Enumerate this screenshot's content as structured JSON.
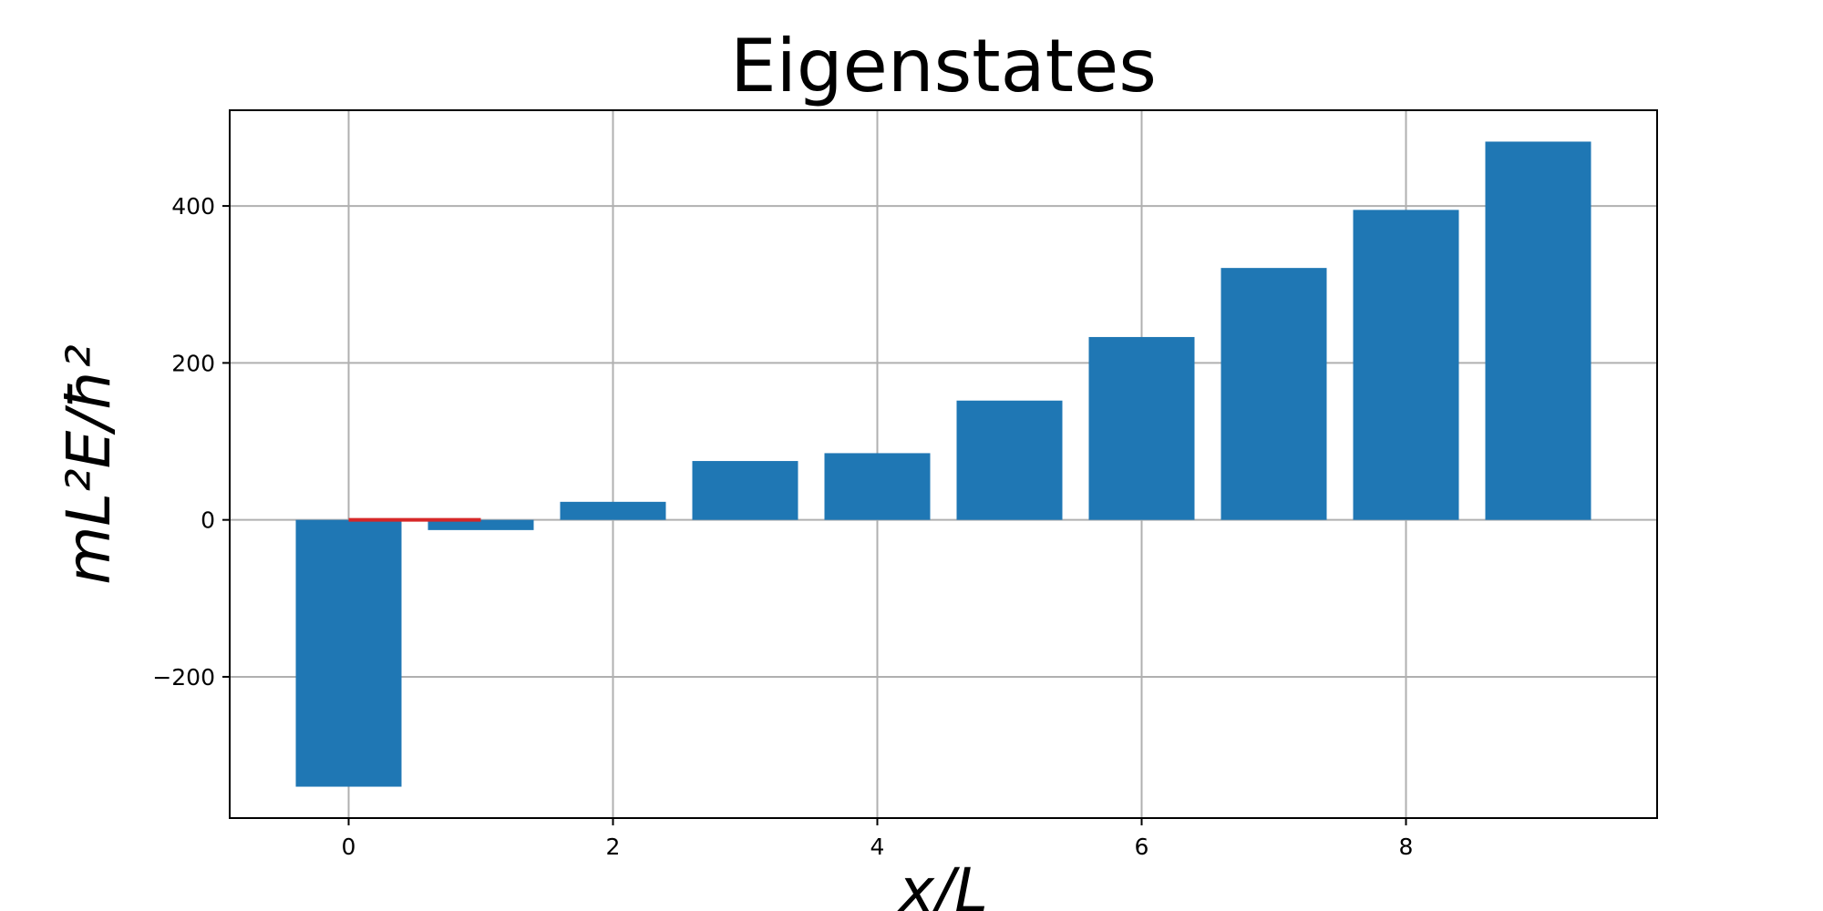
{
  "chart_data": {
    "type": "bar",
    "title": "Eigenstates",
    "xlabel": "x/L",
    "ylabel": "mL²E/ħ²",
    "x": [
      0,
      1,
      2,
      3,
      4,
      5,
      6,
      7,
      8,
      9
    ],
    "values": [
      -340,
      -13,
      23,
      75,
      85,
      152,
      233,
      321,
      395,
      482
    ],
    "xlim": [
      -0.9,
      9.9
    ],
    "ylim": [
      -380,
      522
    ],
    "xticks": [
      0,
      2,
      4,
      6,
      8
    ],
    "xtick_labels": [
      "0",
      "2",
      "4",
      "6",
      "8"
    ],
    "yticks": [
      -200,
      0,
      200,
      400
    ],
    "ytick_labels": [
      "−200",
      "0",
      "200",
      "400"
    ],
    "reference_line": {
      "x": [
        0,
        1
      ],
      "y": 0,
      "color": "#d62728"
    },
    "bar_color": "#1f77b4",
    "grid": true
  }
}
